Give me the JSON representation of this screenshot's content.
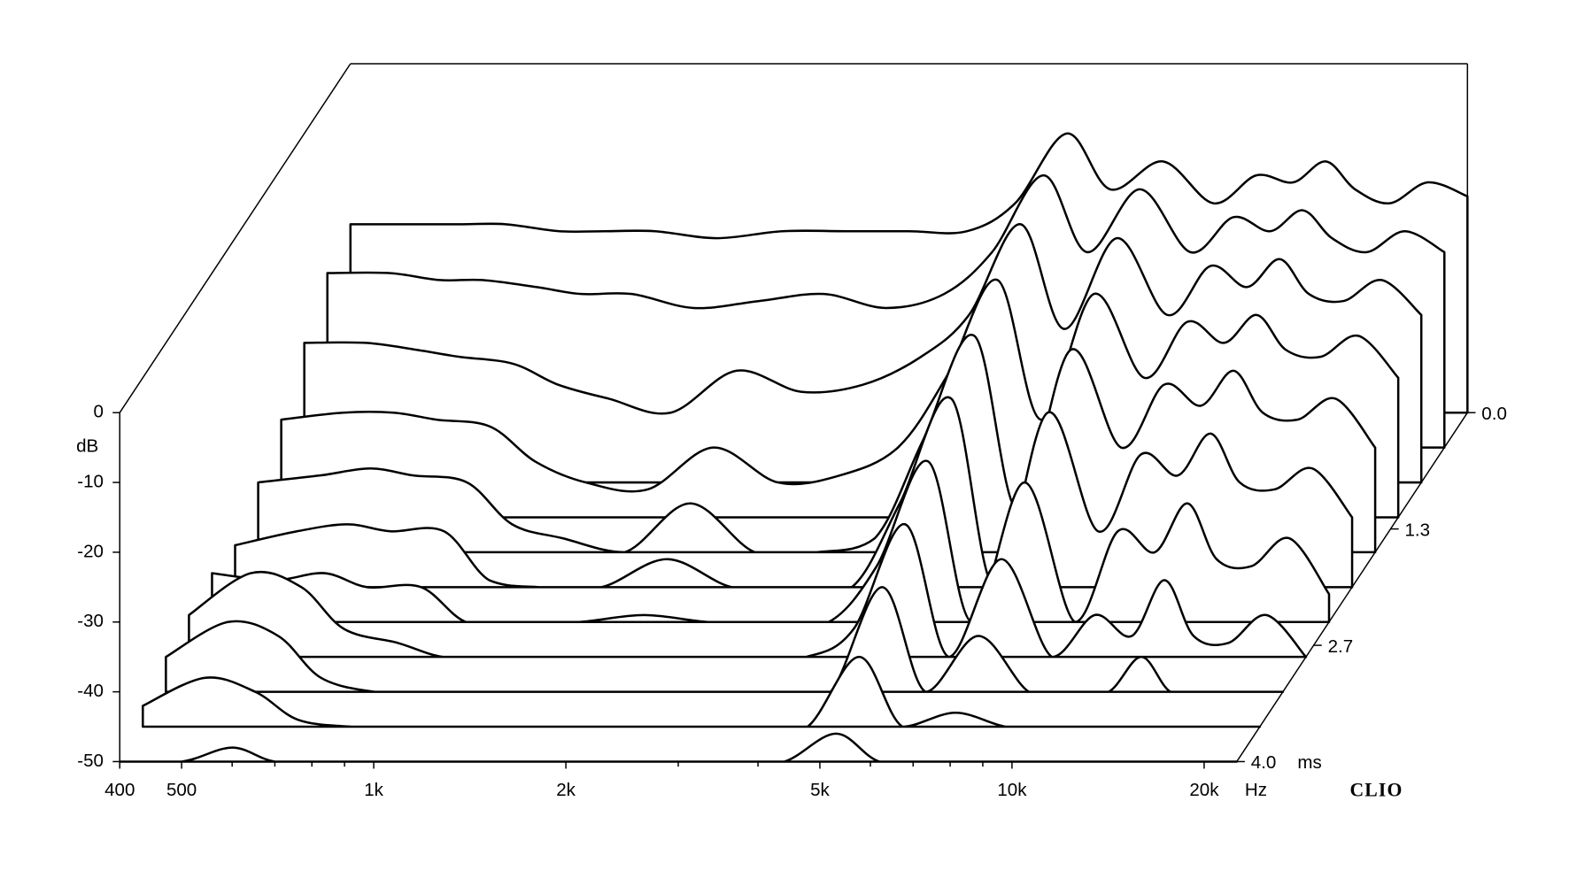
{
  "chart_data": {
    "type": "waterfall",
    "x": [
      400,
      500,
      600,
      700,
      850,
      1000,
      1200,
      1500,
      1900,
      2400,
      3000,
      3700,
      4400,
      5300,
      6200,
      7500,
      9000,
      10500,
      12000,
      13500,
      15000,
      17000,
      19500,
      22500
    ],
    "z": [
      0,
      0.4,
      0.8,
      1.2,
      1.6,
      2.0,
      2.4,
      2.8,
      3.2,
      3.6,
      4.0
    ],
    "values": [
      [
        -23,
        -23,
        -23,
        -23,
        -24,
        -24,
        -24,
        -25,
        -24,
        -24,
        -24,
        -24,
        -20,
        -10,
        -18,
        -14,
        -20,
        -16,
        -17,
        -14,
        -18,
        -20,
        -17,
        -19
      ],
      [
        -25,
        -25,
        -26,
        -26,
        -27,
        -28,
        -28,
        -30,
        -29,
        -28,
        -30,
        -28,
        -22,
        -11,
        -22,
        -13,
        -22,
        -17,
        -19,
        -16,
        -20,
        -22,
        -19,
        -22
      ],
      [
        -30,
        -30,
        -31,
        -32,
        -33,
        -36,
        -38,
        -40,
        -34,
        -37,
        -36,
        -32,
        -26,
        -13,
        -28,
        -15,
        -26,
        -19,
        -22,
        -18,
        -23,
        -24,
        -21,
        -26
      ],
      [
        -36,
        -35,
        -35,
        -36,
        -37,
        -42,
        -45,
        -46,
        -40,
        -45,
        -44,
        -40,
        -30,
        -16,
        -36,
        -18,
        -30,
        -22,
        -25,
        -21,
        -26,
        -27,
        -24,
        -30
      ],
      [
        -40,
        -39,
        -38,
        -39,
        -40,
        -46,
        -48,
        -50,
        -43,
        -50,
        -50,
        -48,
        -34,
        -19,
        -44,
        -21,
        -35,
        -26,
        -29,
        -24,
        -30,
        -31,
        -28,
        -35
      ],
      [
        -44,
        -42,
        -41,
        -42,
        -42,
        -49,
        -50,
        -50,
        -46,
        -50,
        -50,
        -50,
        -38,
        -23,
        -50,
        -25,
        -42,
        -31,
        -34,
        -28,
        -35,
        -36,
        -33,
        -40
      ],
      [
        -43,
        -44,
        -43,
        -45,
        -45,
        -50,
        -50,
        -50,
        -49,
        -50,
        -50,
        -50,
        -42,
        -27,
        -50,
        -30,
        -50,
        -37,
        -40,
        -33,
        -41,
        -42,
        -38,
        -46
      ],
      [
        -44,
        -38,
        -40,
        -46,
        -48,
        -50,
        -50,
        -50,
        -50,
        -50,
        -50,
        -50,
        -46,
        -31,
        -50,
        -36,
        -50,
        -44,
        -47,
        -39,
        -47,
        -48,
        -44,
        -50
      ],
      [
        -45,
        -40,
        -42,
        -48,
        -50,
        -50,
        -50,
        -50,
        -50,
        -50,
        -50,
        -50,
        -50,
        -35,
        -50,
        -42,
        -50,
        -50,
        -50,
        -45,
        -50,
        -50,
        -50,
        -50
      ],
      [
        -47,
        -43,
        -45,
        -49,
        -50,
        -50,
        -50,
        -50,
        -50,
        -50,
        -50,
        -50,
        -50,
        -40,
        -50,
        -48,
        -50,
        -50,
        -50,
        -50,
        -50,
        -50,
        -50,
        -50
      ],
      [
        -50,
        -50,
        -48,
        -50,
        -50,
        -50,
        -50,
        -50,
        -50,
        -50,
        -50,
        -50,
        -50,
        -46,
        -50,
        -50,
        -50,
        -50,
        -50,
        -50,
        -50,
        -50,
        -50,
        -50
      ]
    ],
    "xlim": [
      400,
      22500
    ],
    "xticks": [
      400,
      500,
      {
        "value": 1000,
        "label": "1k"
      },
      {
        "value": 2000,
        "label": "2k"
      },
      {
        "value": 5000,
        "label": "5k"
      },
      {
        "value": 10000,
        "label": "10k"
      },
      {
        "value": 20000,
        "label": "20k"
      }
    ],
    "xminor_ticks": [
      600,
      700,
      800,
      900,
      3000,
      4000,
      6000,
      7000,
      8000,
      9000
    ],
    "xunit": "Hz",
    "ylim": [
      -50,
      0
    ],
    "yticks": [
      0,
      -10,
      -20,
      -30,
      -40,
      -50
    ],
    "ylabel": "dB",
    "zlim": [
      0,
      4
    ],
    "zticks": [
      {
        "value": 0,
        "label": "0.0"
      },
      {
        "value": 1.333,
        "label": "1.3"
      },
      {
        "value": 2.667,
        "label": "2.7"
      },
      {
        "value": 4,
        "label": "4.0"
      }
    ],
    "zunit": "ms",
    "brand": "CLIO",
    "color": "#000000",
    "fill": "#ffffff"
  }
}
